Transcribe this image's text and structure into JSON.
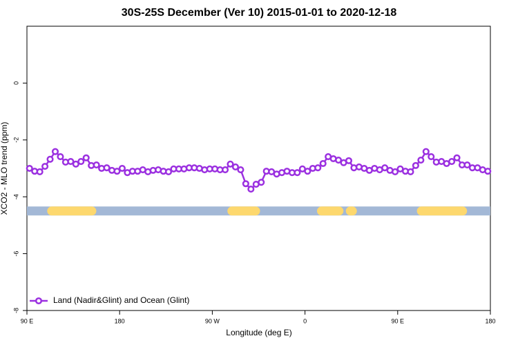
{
  "chart_data": {
    "type": "line",
    "title": "30S-25S December (Ver 10)   2015-01-01 to 2020-12-18",
    "xlabel": "Longitude (deg E)",
    "ylabel": "XCO2 - MLO trend (ppm)",
    "xlim": [
      90,
      540
    ],
    "xticks": [
      {
        "value": 90,
        "label": "90 E"
      },
      180,
      {
        "value": 270,
        "label": "90 W"
      },
      {
        "value": 360,
        "label": "0"
      },
      {
        "value": 450,
        "label": "90 E"
      },
      {
        "value": 540,
        "label": "180"
      }
    ],
    "ylim": [
      -8,
      2
    ],
    "yticks": [
      0,
      -2,
      -4,
      -6,
      -8
    ],
    "legend": "bottom-left",
    "x": [
      92.5,
      97.5,
      102.5,
      107.5,
      112.5,
      117.5,
      122.5,
      127.5,
      132.5,
      137.5,
      142.5,
      147.5,
      152.5,
      157.5,
      162.5,
      167.5,
      172.5,
      177.5,
      182.5,
      187.5,
      192.5,
      197.5,
      202.5,
      207.5,
      212.5,
      217.5,
      222.5,
      227.5,
      232.5,
      237.5,
      242.5,
      247.5,
      252.5,
      257.5,
      262.5,
      267.5,
      272.5,
      277.5,
      282.5,
      287.5,
      292.5,
      297.5,
      302.5,
      307.5,
      312.5,
      317.5,
      322.5,
      327.5,
      332.5,
      337.5,
      342.5,
      347.5,
      352.5,
      357.5,
      362.5,
      367.5,
      372.5,
      377.5,
      382.5,
      387.5,
      392.5,
      397.5,
      402.5,
      407.5,
      412.5,
      417.5,
      422.5,
      427.5,
      432.5,
      437.5,
      442.5,
      447.5,
      452.5,
      457.5,
      462.5,
      467.5,
      472.5,
      477.5,
      482.5,
      487.5,
      492.5,
      497.5,
      502.5,
      507.5,
      512.5,
      517.5,
      522.5,
      527.5,
      532.5,
      537.5
    ],
    "series": [
      {
        "name": "Land (Nadir&Glint) and Ocean (Glint)",
        "color": "#9b30e0",
        "values": [
          -3.0,
          -3.1,
          -3.12,
          -2.93,
          -2.68,
          -2.41,
          -2.59,
          -2.78,
          -2.76,
          -2.85,
          -2.76,
          -2.63,
          -2.9,
          -2.88,
          -3.0,
          -2.98,
          -3.07,
          -3.1,
          -3.0,
          -3.15,
          -3.1,
          -3.1,
          -3.05,
          -3.12,
          -3.07,
          -3.05,
          -3.1,
          -3.12,
          -3.02,
          -3.02,
          -3.02,
          -2.98,
          -2.98,
          -3.0,
          -3.05,
          -3.02,
          -3.02,
          -3.05,
          -3.05,
          -2.85,
          -2.95,
          -3.05,
          -3.54,
          -3.73,
          -3.56,
          -3.49,
          -3.1,
          -3.12,
          -3.2,
          -3.15,
          -3.1,
          -3.15,
          -3.15,
          -3.02,
          -3.1,
          -3.0,
          -2.98,
          -2.83,
          -2.59,
          -2.66,
          -2.71,
          -2.8,
          -2.73,
          -2.98,
          -2.95,
          -3.0,
          -3.07,
          -3.0,
          -3.05,
          -2.98,
          -3.07,
          -3.12,
          -3.02,
          -3.1,
          -3.12,
          -2.9,
          -2.71,
          -2.41,
          -2.59,
          -2.78,
          -2.76,
          -2.83,
          -2.76,
          -2.63,
          -2.88,
          -2.88,
          -2.98,
          -2.98,
          -3.05,
          -3.1
        ]
      }
    ],
    "land_band": {
      "y": -4.5,
      "color": "#a3b8d6",
      "land_color": "#fdd86e",
      "land": [
        [
          114,
          153
        ],
        [
          289,
          312
        ],
        [
          376,
          393
        ],
        [
          404,
          406
        ],
        [
          473,
          513
        ]
      ]
    }
  }
}
